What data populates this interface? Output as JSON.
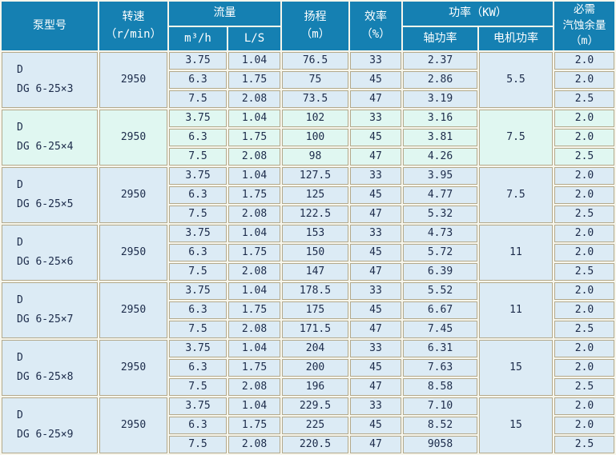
{
  "colors": {
    "header_bg": "#1580b2",
    "header_text": "#ffffff",
    "row_bg": "#dcebf5",
    "row_bg_highlight": "#e0f7f1",
    "grid_border": "#b3a98c",
    "grid_gap": "#f7f6ec",
    "body_text": "#1c2b4a"
  },
  "table": {
    "columns": {
      "model": "泵型号",
      "speed": "转速\n（r/min）",
      "flow": "流量",
      "flow_m3h": "m³/h",
      "flow_ls": "L/S",
      "head": "扬程\n（m）",
      "efficiency": "效率\n（%）",
      "power": "功率（KW）",
      "power_shaft": "轴功率",
      "power_motor": "电机功率",
      "npsh": "必需\n汽蚀余量\n（m）"
    },
    "groups": [
      {
        "model": "D\nDG  6-25×3",
        "speed": "2950",
        "motor": "5.5",
        "highlight": false,
        "rows": [
          {
            "m3h": "3.75",
            "ls": "1.04",
            "head": "76.5",
            "eff": "33",
            "shaft": "2.37",
            "npsh": "2.0"
          },
          {
            "m3h": "6.3",
            "ls": "1.75",
            "head": "75",
            "eff": "45",
            "shaft": "2.86",
            "npsh": "2.0"
          },
          {
            "m3h": "7.5",
            "ls": "2.08",
            "head": "73.5",
            "eff": "47",
            "shaft": "3.19",
            "npsh": "2.5"
          }
        ]
      },
      {
        "model": "D\nDG  6-25×4",
        "speed": "2950",
        "motor": "7.5",
        "highlight": true,
        "rows": [
          {
            "m3h": "3.75",
            "ls": "1.04",
            "head": "102",
            "eff": "33",
            "shaft": "3.16",
            "npsh": "2.0"
          },
          {
            "m3h": "6.3",
            "ls": "1.75",
            "head": "100",
            "eff": "45",
            "shaft": "3.81",
            "npsh": "2.0"
          },
          {
            "m3h": "7.5",
            "ls": "2.08",
            "head": "98",
            "eff": "47",
            "shaft": "4.26",
            "npsh": "2.5"
          }
        ]
      },
      {
        "model": "D\nDG  6-25×5",
        "speed": "2950",
        "motor": "7.5",
        "highlight": false,
        "rows": [
          {
            "m3h": "3.75",
            "ls": "1.04",
            "head": "127.5",
            "eff": "33",
            "shaft": "3.95",
            "npsh": "2.0"
          },
          {
            "m3h": "6.3",
            "ls": "1.75",
            "head": "125",
            "eff": "45",
            "shaft": "4.77",
            "npsh": "2.0"
          },
          {
            "m3h": "7.5",
            "ls": "2.08",
            "head": "122.5",
            "eff": "47",
            "shaft": "5.32",
            "npsh": "2.5"
          }
        ]
      },
      {
        "model": "D\nDG  6-25×6",
        "speed": "2950",
        "motor": "11",
        "highlight": false,
        "rows": [
          {
            "m3h": "3.75",
            "ls": "1.04",
            "head": "153",
            "eff": "33",
            "shaft": "4.73",
            "npsh": "2.0"
          },
          {
            "m3h": "6.3",
            "ls": "1.75",
            "head": "150",
            "eff": "45",
            "shaft": "5.72",
            "npsh": "2.0"
          },
          {
            "m3h": "7.5",
            "ls": "2.08",
            "head": "147",
            "eff": "47",
            "shaft": "6.39",
            "npsh": "2.5"
          }
        ]
      },
      {
        "model": "D\nDG  6-25×7",
        "speed": "2950",
        "motor": "11",
        "highlight": false,
        "rows": [
          {
            "m3h": "3.75",
            "ls": "1.04",
            "head": "178.5",
            "eff": "33",
            "shaft": "5.52",
            "npsh": "2.0"
          },
          {
            "m3h": "6.3",
            "ls": "1.75",
            "head": "175",
            "eff": "45",
            "shaft": "6.67",
            "npsh": "2.0"
          },
          {
            "m3h": "7.5",
            "ls": "2.08",
            "head": "171.5",
            "eff": "47",
            "shaft": "7.45",
            "npsh": "2.5"
          }
        ]
      },
      {
        "model": "D\nDG  6-25×8",
        "speed": "2950",
        "motor": "15",
        "highlight": false,
        "rows": [
          {
            "m3h": "3.75",
            "ls": "1.04",
            "head": "204",
            "eff": "33",
            "shaft": "6.31",
            "npsh": "2.0"
          },
          {
            "m3h": "6.3",
            "ls": "1.75",
            "head": "200",
            "eff": "45",
            "shaft": "7.63",
            "npsh": "2.0"
          },
          {
            "m3h": "7.5",
            "ls": "2.08",
            "head": "196",
            "eff": "47",
            "shaft": "8.58",
            "npsh": "2.5"
          }
        ]
      },
      {
        "model": "D\nDG  6-25×9",
        "speed": "2950",
        "motor": "15",
        "highlight": false,
        "rows": [
          {
            "m3h": "3.75",
            "ls": "1.04",
            "head": "229.5",
            "eff": "33",
            "shaft": "7.10",
            "npsh": "2.0"
          },
          {
            "m3h": "6.3",
            "ls": "1.75",
            "head": "225",
            "eff": "45",
            "shaft": "8.52",
            "npsh": "2.0"
          },
          {
            "m3h": "7.5",
            "ls": "2.08",
            "head": "220.5",
            "eff": "47",
            "shaft": "9058",
            "npsh": "2.5"
          }
        ]
      }
    ]
  }
}
